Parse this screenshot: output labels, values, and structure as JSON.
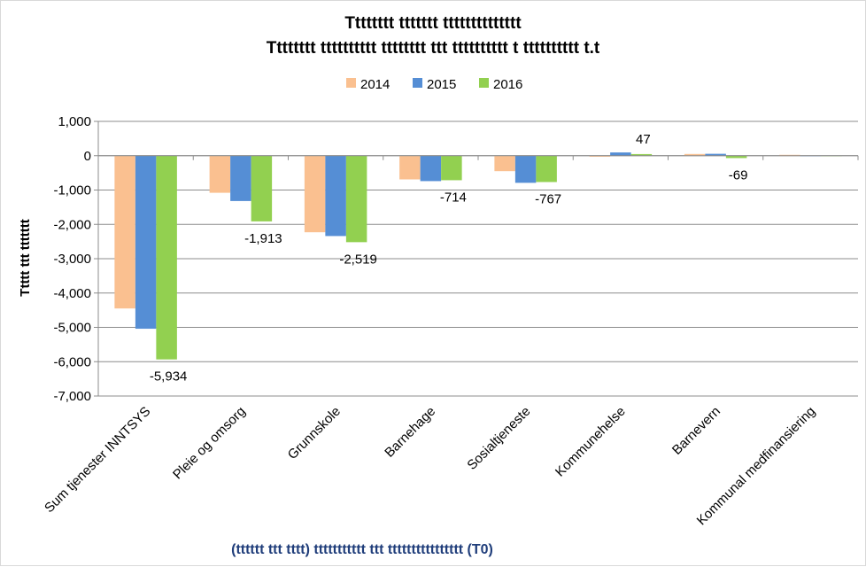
{
  "chart_data": {
    "type": "bar",
    "title_lines": [
      "Tttttttt ttttttt tttttttttttttt",
      "Tttttttt tttttttttt tttttttt ttt  tttttttttt t tttttttttt t.t"
    ],
    "xlabel": "(tttttt ttt tttt) ttttttttttt ttt tttttttttttttttt (T0)",
    "ylabel": "Ttttt ttt ttttttt",
    "categories": [
      "Sum tjenester INNTSYS",
      "Pleie og omsorg",
      "Grunnskole",
      "Barnehage",
      "Sosialtjeneste",
      "Kommunehelse",
      "Barnevern",
      "Kommunal medfinansiering"
    ],
    "series": [
      {
        "name": "2014",
        "color": "#fac090",
        "values": [
          -4450,
          -1080,
          -2230,
          -690,
          -450,
          -30,
          50,
          25
        ]
      },
      {
        "name": "2015",
        "color": "#558ed5",
        "values": [
          -5040,
          -1320,
          -2340,
          -740,
          -790,
          95,
          55,
          0
        ]
      },
      {
        "name": "2016",
        "color": "#92d050",
        "values": [
          -5934,
          -1913,
          -2519,
          -714,
          -767,
          47,
          -69,
          0
        ]
      }
    ],
    "data_labels": [
      {
        "category": 0,
        "series": 2,
        "text": "-5,934"
      },
      {
        "category": 1,
        "series": 2,
        "text": "-1,913"
      },
      {
        "category": 2,
        "series": 2,
        "text": "-2,519"
      },
      {
        "category": 3,
        "series": 2,
        "text": "-714"
      },
      {
        "category": 4,
        "series": 2,
        "text": "-767"
      },
      {
        "category": 5,
        "series": 2,
        "text": "47"
      },
      {
        "category": 6,
        "series": 2,
        "text": "-69"
      }
    ],
    "yticks": [
      "1,000",
      "0",
      "-1,000",
      "-2,000",
      "-3,000",
      "-4,000",
      "-5,000",
      "-6,000",
      "-7,000"
    ],
    "ylim": [
      -7000,
      1000
    ],
    "grid": true,
    "legend_position": "top-center"
  }
}
